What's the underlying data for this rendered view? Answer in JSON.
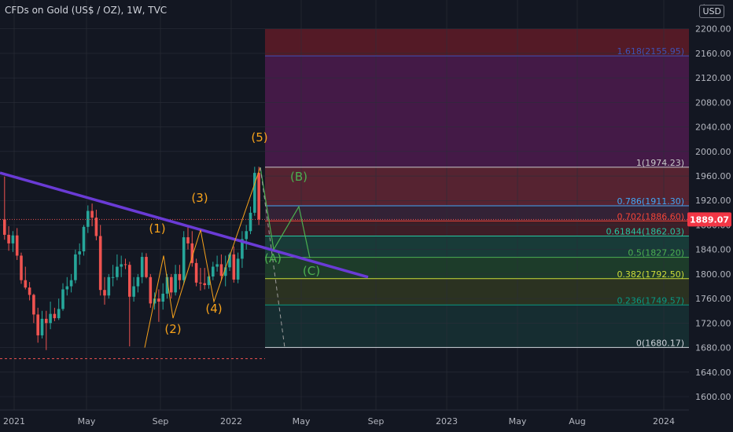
{
  "header": {
    "title": "CFDs on Gold (US$ / OZ), 1W, TVC",
    "currency": "USD",
    "settings_icon": "gear-icon"
  },
  "price_label": "1889.07",
  "colors": {
    "background": "#131722",
    "up": "#26a69a",
    "down": "#ef5350",
    "wave_label": "#f7a21b",
    "corrective_label": "#4caf50",
    "trendline": "#6a3bd6",
    "price_tag": "#f23645"
  },
  "chart_data": {
    "type": "candlestick",
    "symbol": "CFDs on Gold (US$ / OZ)",
    "timeframe": "1W",
    "source": "TVC",
    "ylim": [
      1580,
      2200
    ],
    "y_ticks": [
      "1600.00",
      "1640.00",
      "1680.00",
      "1720.00",
      "1760.00",
      "1800.00",
      "1840.00",
      "1880.00",
      "1920.00",
      "1960.00",
      "2000.00",
      "2040.00",
      "2080.00",
      "2120.00",
      "2160.00",
      "2200.00"
    ],
    "x_ticks": [
      "2021",
      "May",
      "Sep",
      "2022",
      "May",
      "Sep",
      "2023",
      "May",
      "Aug",
      "2024"
    ],
    "last_price": 1889.07,
    "candles": [
      [
        1889,
        1959,
        1856,
        1864
      ],
      [
        1864,
        1878,
        1838,
        1850
      ],
      [
        1850,
        1870,
        1836,
        1863
      ],
      [
        1863,
        1875,
        1823,
        1830
      ],
      [
        1830,
        1835,
        1784,
        1790
      ],
      [
        1790,
        1812,
        1775,
        1778
      ],
      [
        1778,
        1787,
        1757,
        1766
      ],
      [
        1766,
        1768,
        1720,
        1734
      ],
      [
        1734,
        1745,
        1688,
        1700
      ],
      [
        1700,
        1740,
        1695,
        1727
      ],
      [
        1727,
        1740,
        1676,
        1720
      ],
      [
        1720,
        1755,
        1710,
        1735
      ],
      [
        1735,
        1745,
        1723,
        1728
      ],
      [
        1728,
        1760,
        1725,
        1743
      ],
      [
        1743,
        1785,
        1740,
        1775
      ],
      [
        1775,
        1795,
        1765,
        1780
      ],
      [
        1780,
        1800,
        1770,
        1790
      ],
      [
        1790,
        1840,
        1785,
        1832
      ],
      [
        1832,
        1850,
        1815,
        1837
      ],
      [
        1837,
        1880,
        1830,
        1877
      ],
      [
        1877,
        1912,
        1867,
        1903
      ],
      [
        1903,
        1915,
        1878,
        1892
      ],
      [
        1892,
        1905,
        1855,
        1862
      ],
      [
        1862,
        1880,
        1765,
        1774
      ],
      [
        1774,
        1795,
        1750,
        1765
      ],
      [
        1765,
        1800,
        1760,
        1795
      ],
      [
        1795,
        1815,
        1780,
        1795
      ],
      [
        1795,
        1832,
        1790,
        1812
      ],
      [
        1812,
        1830,
        1795,
        1816
      ],
      [
        1816,
        1825,
        1808,
        1815
      ],
      [
        1815,
        1820,
        1682,
        1763
      ],
      [
        1763,
        1795,
        1755,
        1780
      ],
      [
        1780,
        1800,
        1770,
        1795
      ],
      [
        1795,
        1835,
        1785,
        1828
      ],
      [
        1828,
        1834,
        1793,
        1795
      ],
      [
        1795,
        1800,
        1745,
        1752
      ],
      [
        1752,
        1770,
        1742,
        1760
      ],
      [
        1760,
        1775,
        1722,
        1755
      ],
      [
        1755,
        1785,
        1742,
        1768
      ],
      [
        1768,
        1800,
        1760,
        1795
      ],
      [
        1795,
        1800,
        1760,
        1770
      ],
      [
        1770,
        1815,
        1765,
        1800
      ],
      [
        1800,
        1815,
        1775,
        1790
      ],
      [
        1790,
        1870,
        1783,
        1860
      ],
      [
        1860,
        1878,
        1840,
        1850
      ],
      [
        1850,
        1870,
        1812,
        1818
      ],
      [
        1818,
        1825,
        1780,
        1786
      ],
      [
        1786,
        1810,
        1773,
        1785
      ],
      [
        1785,
        1810,
        1775,
        1782
      ],
      [
        1782,
        1800,
        1776,
        1796
      ],
      [
        1796,
        1820,
        1790,
        1812
      ],
      [
        1812,
        1830,
        1804,
        1816
      ],
      [
        1816,
        1832,
        1790,
        1797
      ],
      [
        1797,
        1830,
        1780,
        1811
      ],
      [
        1811,
        1835,
        1805,
        1832
      ],
      [
        1832,
        1845,
        1786,
        1791
      ],
      [
        1791,
        1835,
        1785,
        1825
      ],
      [
        1825,
        1870,
        1810,
        1857
      ],
      [
        1857,
        1880,
        1840,
        1870
      ],
      [
        1870,
        1910,
        1865,
        1900
      ],
      [
        1900,
        1975,
        1895,
        1965
      ],
      [
        1965,
        1975,
        1880,
        1889
      ]
    ],
    "fib_levels": [
      {
        "ratio": "0",
        "value": 1680.17,
        "label": "0(1680.17)",
        "color": "#d1d4dc"
      },
      {
        "ratio": "0.236",
        "value": 1749.57,
        "label": "0.236(1749.57)",
        "color": "#089981"
      },
      {
        "ratio": "0.382",
        "value": 1792.5,
        "label": "0.382(1792.50)",
        "color": "#cddc39"
      },
      {
        "ratio": "0.5",
        "value": 1827.2,
        "label": "0.5(1827.20)",
        "color": "#4caf50"
      },
      {
        "ratio": "0.61844",
        "value": 1862.03,
        "label": "0.61844(1862.03)",
        "color": "#26c6a0"
      },
      {
        "ratio": "0.702",
        "value": 1886.6,
        "label": "0.702(1886.60)",
        "color": "#f44336"
      },
      {
        "ratio": "0.786",
        "value": 1911.3,
        "label": "0.786(1911.30)",
        "color": "#42a5f5"
      },
      {
        "ratio": "1",
        "value": 1974.23,
        "label": "1(1974.23)",
        "color": "#c9c9c9"
      },
      {
        "ratio": "1.618",
        "value": 2155.95,
        "label": "1.618(2155.95)",
        "color": "#3f51b5"
      }
    ],
    "wave_labels": [
      {
        "text": "(1)",
        "x": "Jul 2021",
        "y": 1830
      },
      {
        "text": "(2)",
        "x": "Sep 2021",
        "y": 1718
      },
      {
        "text": "(3)",
        "x": "Nov 2021",
        "y": 1890
      },
      {
        "text": "(4)",
        "x": "Dec 2021",
        "y": 1750
      },
      {
        "text": "(5)",
        "x": "Mar 2022",
        "y": 1995
      }
    ],
    "corrective_labels": [
      {
        "text": "(A)",
        "x": "Apr 2022",
        "y": 1832
      },
      {
        "text": "(B)",
        "x": "Apr 2022",
        "y": 1923
      },
      {
        "text": "(C)",
        "x": "May 2022",
        "y": 1805
      }
    ]
  }
}
